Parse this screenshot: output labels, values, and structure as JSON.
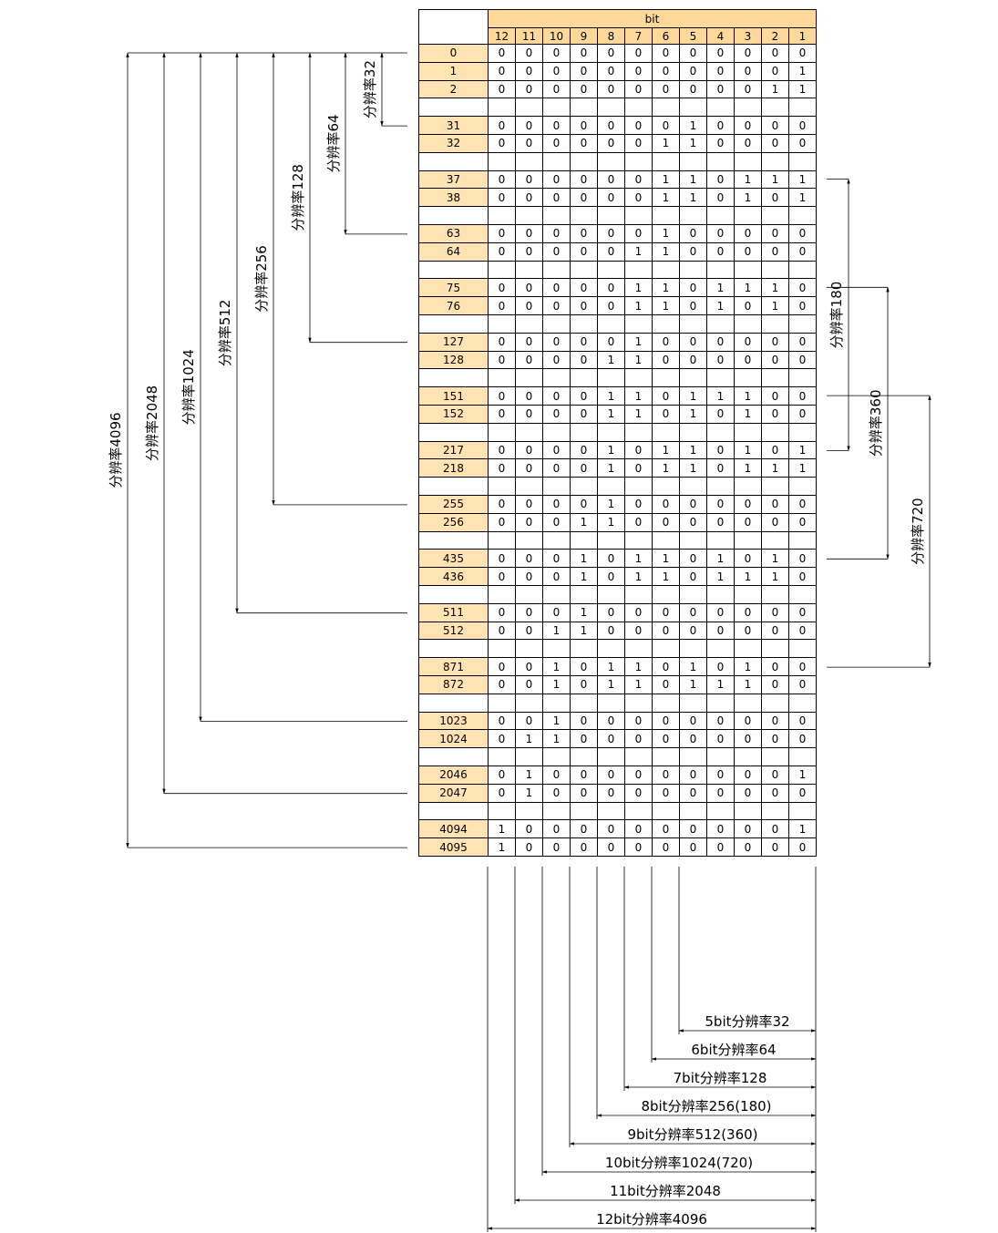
{
  "header": {
    "bit_label": "bit",
    "bits": [
      "12",
      "11",
      "10",
      "9",
      "8",
      "7",
      "6",
      "5",
      "4",
      "3",
      "2",
      "1"
    ]
  },
  "rows": [
    {
      "v": "0",
      "bits": "000000000000"
    },
    {
      "v": "1",
      "bits": "000000000001"
    },
    {
      "v": "2",
      "bits": "000000000011"
    },
    {
      "v": "",
      "bits": ""
    },
    {
      "v": "31",
      "bits": "000000010000"
    },
    {
      "v": "32",
      "bits": "000000110000"
    },
    {
      "v": "",
      "bits": ""
    },
    {
      "v": "37",
      "bits": "000000110111"
    },
    {
      "v": "38",
      "bits": "000000110101"
    },
    {
      "v": "",
      "bits": ""
    },
    {
      "v": "63",
      "bits": "000000100000"
    },
    {
      "v": "64",
      "bits": "000001100000"
    },
    {
      "v": "",
      "bits": ""
    },
    {
      "v": "75",
      "bits": "000001101110"
    },
    {
      "v": "76",
      "bits": "000001101010"
    },
    {
      "v": "",
      "bits": ""
    },
    {
      "v": "127",
      "bits": "000001000000"
    },
    {
      "v": "128",
      "bits": "000011000000"
    },
    {
      "v": "",
      "bits": ""
    },
    {
      "v": "151",
      "bits": "000011011100"
    },
    {
      "v": "152",
      "bits": "000011010100"
    },
    {
      "v": "",
      "bits": ""
    },
    {
      "v": "217",
      "bits": "000010110101"
    },
    {
      "v": "218",
      "bits": "000010110111"
    },
    {
      "v": "",
      "bits": ""
    },
    {
      "v": "255",
      "bits": "000010000000"
    },
    {
      "v": "256",
      "bits": "000110000000"
    },
    {
      "v": "",
      "bits": ""
    },
    {
      "v": "435",
      "bits": "000101101010"
    },
    {
      "v": "436",
      "bits": "000101101110"
    },
    {
      "v": "",
      "bits": ""
    },
    {
      "v": "511",
      "bits": "000100000000"
    },
    {
      "v": "512",
      "bits": "001100000000"
    },
    {
      "v": "",
      "bits": ""
    },
    {
      "v": "871",
      "bits": "001011010100"
    },
    {
      "v": "872",
      "bits": "001011011100"
    },
    {
      "v": "",
      "bits": ""
    },
    {
      "v": "1023",
      "bits": "001000000000"
    },
    {
      "v": "1024",
      "bits": "011000000000"
    },
    {
      "v": "",
      "bits": ""
    },
    {
      "v": "2046",
      "bits": "010000000001"
    },
    {
      "v": "2047",
      "bits": "010000000000"
    },
    {
      "v": "",
      "bits": ""
    },
    {
      "v": "4094",
      "bits": "100000000001"
    },
    {
      "v": "4095",
      "bits": "100000000000"
    }
  ],
  "left_brackets": [
    {
      "label": "分辨率32",
      "end_row": 4
    },
    {
      "label": "分辨率64",
      "end_row": 10
    },
    {
      "label": "分辨率128",
      "end_row": 16
    },
    {
      "label": "分辨率256",
      "end_row": 25
    },
    {
      "label": "分辨率512",
      "end_row": 31
    },
    {
      "label": "分辨率1024",
      "end_row": 37
    },
    {
      "label": "分辨率2048",
      "end_row": 41
    },
    {
      "label": "分辨率4096",
      "end_row": 44
    }
  ],
  "right_brackets": [
    {
      "label": "分辨率180",
      "start_row": 7,
      "end_row": 22
    },
    {
      "label": "分辨率360",
      "start_row": 13,
      "end_row": 28
    },
    {
      "label": "分辨率720",
      "start_row": 19,
      "end_row": 34
    }
  ],
  "bottom_labels": [
    {
      "label": "5bit分辨率32",
      "bit": 5
    },
    {
      "label": "6bit分辨率64",
      "bit": 6
    },
    {
      "label": "7bit分辨率128",
      "bit": 7
    },
    {
      "label": "8bit分辨率256(180)",
      "bit": 8
    },
    {
      "label": "9bit分辨率512(360)",
      "bit": 9
    },
    {
      "label": "10bit分辨率1024(720)",
      "bit": 10
    },
    {
      "label": "11bit分辨率2048",
      "bit": 11
    },
    {
      "label": "12bit分辨率4096",
      "bit": 12
    }
  ]
}
